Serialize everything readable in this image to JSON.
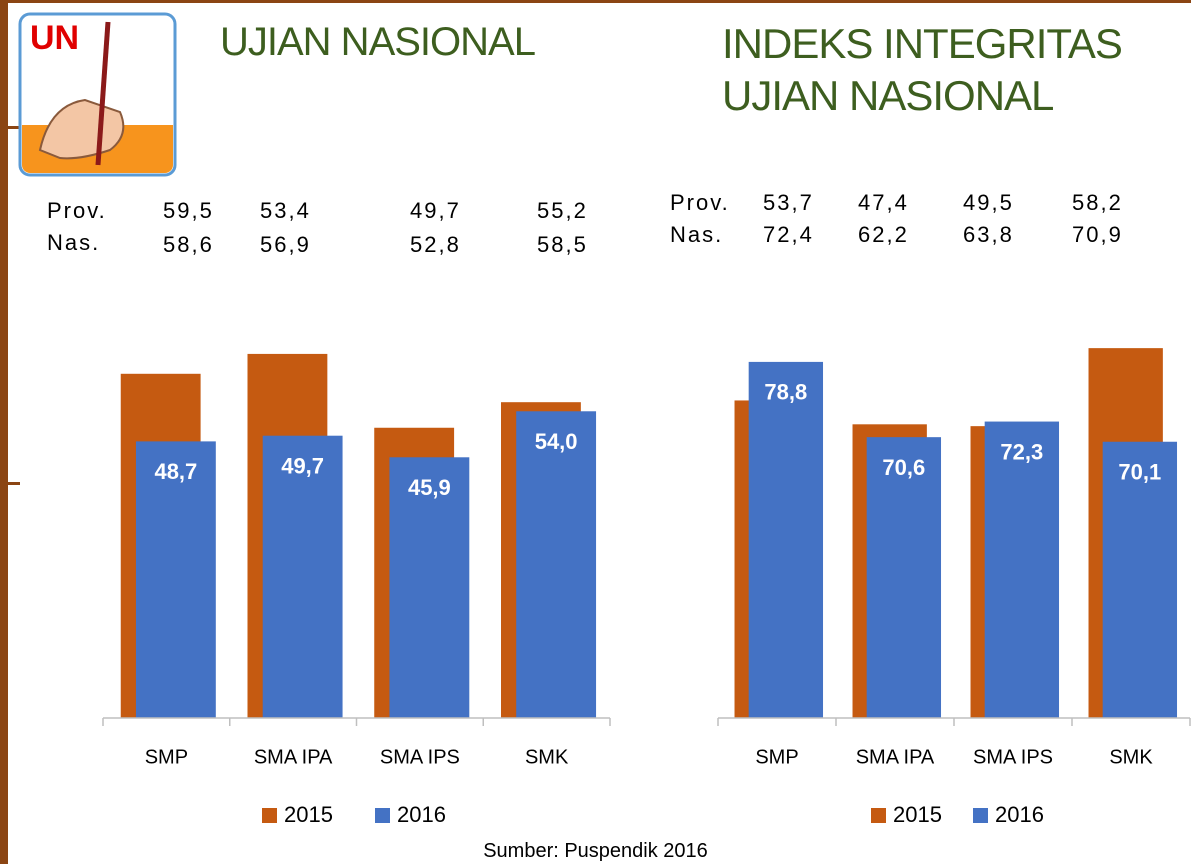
{
  "logo": "UN",
  "source": "Sumber: Puspendik 2016",
  "chart_data": [
    {
      "type": "bar",
      "title": "UJIAN NASIONAL",
      "table": {
        "rows": [
          [
            "Prov.",
            "59,5",
            "53,4",
            "49,7",
            "55,2"
          ],
          [
            "Nas.",
            "58,6",
            "56,9",
            "52,8",
            "58,5"
          ]
        ]
      },
      "categories": [
        "SMP",
        "SMA IPA",
        "SMA IPS",
        "SMK"
      ],
      "series": [
        {
          "name": "2015",
          "color": "#c55a11",
          "values": [
            60.6,
            64.1,
            51.1,
            55.6
          ]
        },
        {
          "name": "2016",
          "color": "#4472c4",
          "values": [
            48.7,
            49.7,
            45.9,
            54.0
          ],
          "value_labels": [
            "48,7",
            "49,7",
            "45,9",
            "54,0"
          ]
        }
      ],
      "ylim": [
        0,
        75
      ]
    },
    {
      "type": "bar",
      "title": "INDEKS INTEGRITAS UJIAN NASIONAL",
      "table": {
        "rows": [
          [
            "Prov.",
            "53,7",
            "47,4",
            "49,5",
            "58,2"
          ],
          [
            "Nas.",
            "72,4",
            "62,2",
            "63,8",
            "70,9"
          ]
        ]
      },
      "categories": [
        "SMP",
        "SMA IPA",
        "SMA IPS",
        "SMK"
      ],
      "series": [
        {
          "name": "2015",
          "color": "#c55a11",
          "values": [
            74.6,
            72.0,
            71.8,
            80.3
          ]
        },
        {
          "name": "2016",
          "color": "#4472c4",
          "values": [
            78.8,
            70.6,
            72.3,
            70.1
          ],
          "value_labels": [
            "78,8",
            "70,6",
            "72,3",
            "70,1"
          ]
        }
      ],
      "ylim": [
        40,
        85
      ]
    }
  ]
}
